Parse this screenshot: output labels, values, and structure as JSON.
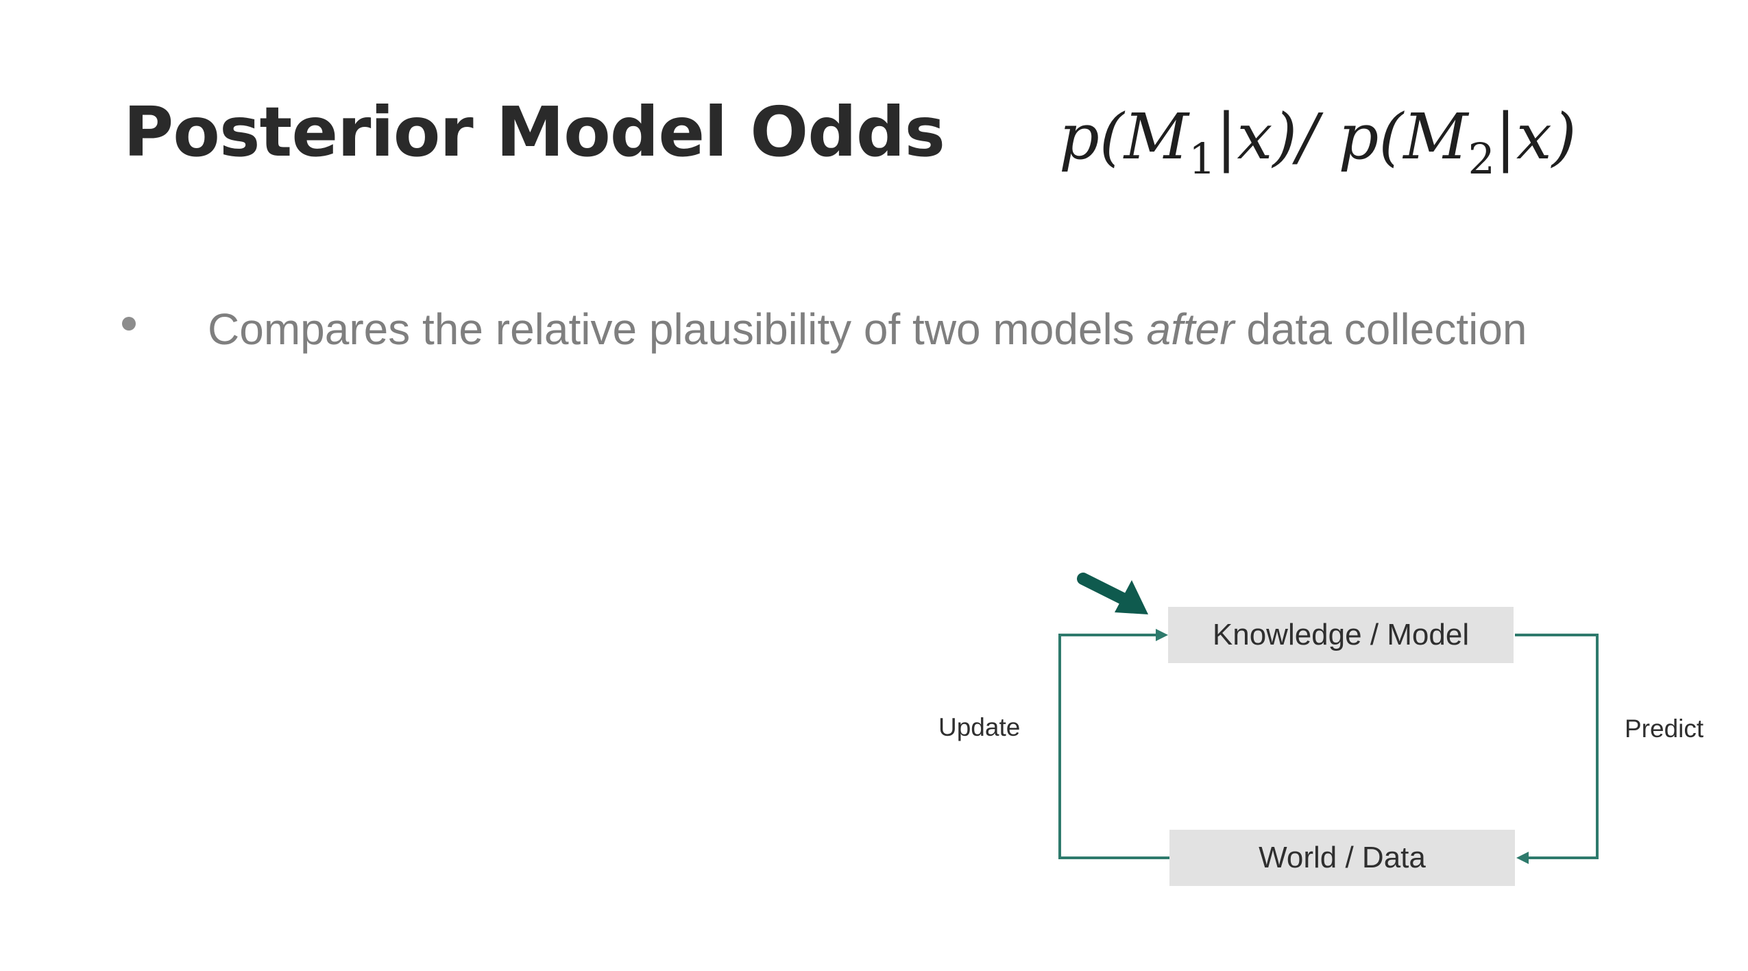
{
  "slide": {
    "title": "Posterior Model Odds",
    "formula": {
      "p1": "p(",
      "m1": "M",
      "sub1": "1",
      "rest1": "|x)/ ",
      "p2": "p(",
      "m2": "M",
      "sub2": "2",
      "rest2": "|x)"
    },
    "bullet": {
      "before": "Compares the relative plausibility of two models ",
      "emphasis": "after",
      "after": " data collection"
    },
    "diagram": {
      "top_box": "Knowledge / Model",
      "bottom_box": "World / Data",
      "left_label": "Update",
      "right_label": "Predict",
      "line_color": "#2e7a6c",
      "pointer_color": "#0f5a4e",
      "box_color": "#e2e2e2"
    }
  }
}
